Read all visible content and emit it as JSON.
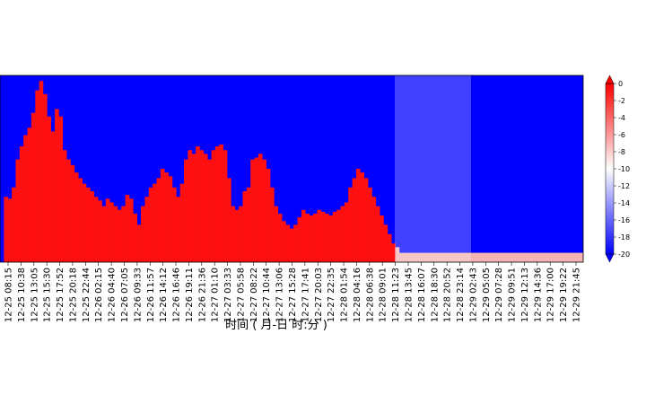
{
  "chart_data": {
    "type": "heatmap",
    "title": "",
    "xlabel": "时间 ( 月-日 时:分 )",
    "ylabel": "",
    "x_ticks": [
      "12-25 08:15",
      "12-25 10:38",
      "12-25 13:05",
      "12-25 15:30",
      "12-25 17:52",
      "12-25 20:18",
      "12-25 22:44",
      "12-26 02:15",
      "12-26 04:40",
      "12-26 07:05",
      "12-26 09:33",
      "12-26 11:57",
      "12-26 14:12",
      "12-26 16:46",
      "12-26 19:11",
      "12-26 21:36",
      "12-27 01:10",
      "12-27 03:33",
      "12-27 05:58",
      "12-27 08:22",
      "12-27 10:44",
      "12-27 13:06",
      "12-27 15:28",
      "12-27 17:41",
      "12-27 20:03",
      "12-27 22:35",
      "12-28 01:54",
      "12-28 04:16",
      "12-28 06:38",
      "12-28 09:01",
      "12-28 11:23",
      "12-28 13:45",
      "12-28 16:07",
      "12-28 18:30",
      "12-28 20:52",
      "12-28 23:14",
      "12-29 02:43",
      "12-29 05:05",
      "12-29 07:28",
      "12-29 09:51",
      "12-29 12:13",
      "12-29 14:36",
      "12-29 17:00",
      "12-29 19:22",
      "12-29 21:45"
    ],
    "colorbar": {
      "min": -20,
      "max": 0,
      "ticks": [
        "0",
        "-2",
        "-4",
        "-6",
        "-8",
        "-10",
        "-12",
        "-14",
        "-16",
        "-18",
        "-20"
      ],
      "colormap": [
        "#0000ff",
        "#ffffff",
        "#ff0000"
      ]
    },
    "grid": false,
    "red_profile_fraction": [
      0.0,
      0.35,
      0.34,
      0.4,
      0.55,
      0.62,
      0.68,
      0.72,
      0.8,
      0.92,
      0.97,
      0.9,
      0.78,
      0.7,
      0.82,
      0.78,
      0.6,
      0.55,
      0.52,
      0.48,
      0.45,
      0.42,
      0.4,
      0.38,
      0.35,
      0.33,
      0.3,
      0.34,
      0.32,
      0.3,
      0.28,
      0.3,
      0.36,
      0.34,
      0.26,
      0.2,
      0.3,
      0.35,
      0.4,
      0.42,
      0.45,
      0.5,
      0.48,
      0.46,
      0.4,
      0.35,
      0.42,
      0.55,
      0.6,
      0.58,
      0.62,
      0.6,
      0.58,
      0.55,
      0.6,
      0.62,
      0.63,
      0.6,
      0.45,
      0.3,
      0.28,
      0.3,
      0.38,
      0.4,
      0.55,
      0.56,
      0.58,
      0.55,
      0.5,
      0.4,
      0.3,
      0.26,
      0.22,
      0.2,
      0.18,
      0.2,
      0.24,
      0.28,
      0.26,
      0.25,
      0.26,
      0.28,
      0.27,
      0.26,
      0.25,
      0.27,
      0.28,
      0.3,
      0.32,
      0.4,
      0.45,
      0.5,
      0.48,
      0.45,
      0.4,
      0.35,
      0.3,
      0.25,
      0.2,
      0.15,
      0.1,
      0.08,
      0.05,
      0.05,
      0.05,
      0.05,
      0.05,
      0.05,
      0.05,
      0.05,
      0.05,
      0.05,
      0.05,
      0.05,
      0.05,
      0.05,
      0.05,
      0.05,
      0.05,
      0.05,
      0.05,
      0.05,
      0.05,
      0.05,
      0.05,
      0.05,
      0.05,
      0.05,
      0.05,
      0.05,
      0.05,
      0.05,
      0.05,
      0.05,
      0.05,
      0.05,
      0.05,
      0.05,
      0.05,
      0.05,
      0.05,
      0.05,
      0.05,
      0.05,
      0.05,
      0.05,
      0.05,
      0.05,
      0.05
    ]
  }
}
